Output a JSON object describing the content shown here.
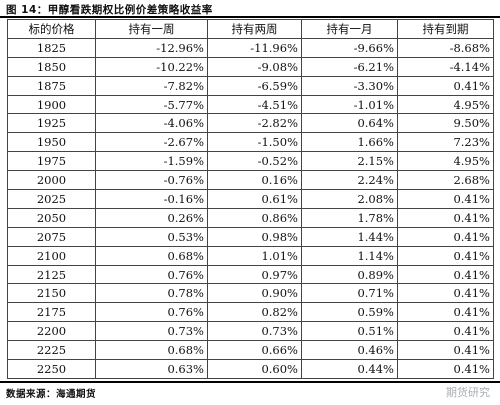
{
  "title": "图 14：甲醇看跌期权比例价差策略收益率",
  "source": "数据来源：海通期货",
  "watermark": "期货研究",
  "table": {
    "headers": [
      "标的价格",
      "持有一周",
      "持有两周",
      "持有一月",
      "持有到期"
    ],
    "rows": [
      [
        "1825",
        "-12.96%",
        "-11.96%",
        "-9.66%",
        "-8.68%"
      ],
      [
        "1850",
        "-10.22%",
        "-9.08%",
        "-6.21%",
        "-4.14%"
      ],
      [
        "1875",
        "-7.82%",
        "-6.59%",
        "-3.30%",
        "0.41%"
      ],
      [
        "1900",
        "-5.77%",
        "-4.51%",
        "-1.01%",
        "4.95%"
      ],
      [
        "1925",
        "-4.06%",
        "-2.82%",
        "0.64%",
        "9.50%"
      ],
      [
        "1950",
        "-2.67%",
        "-1.50%",
        "1.66%",
        "7.23%"
      ],
      [
        "1975",
        "-1.59%",
        "-0.52%",
        "2.15%",
        "4.95%"
      ],
      [
        "2000",
        "-0.76%",
        "0.16%",
        "2.24%",
        "2.68%"
      ],
      [
        "2025",
        "-0.16%",
        "0.61%",
        "2.08%",
        "0.41%"
      ],
      [
        "2050",
        "0.26%",
        "0.86%",
        "1.78%",
        "0.41%"
      ],
      [
        "2075",
        "0.53%",
        "0.98%",
        "1.44%",
        "0.41%"
      ],
      [
        "2100",
        "0.68%",
        "1.01%",
        "1.14%",
        "0.41%"
      ],
      [
        "2125",
        "0.76%",
        "0.97%",
        "0.89%",
        "0.41%"
      ],
      [
        "2150",
        "0.78%",
        "0.90%",
        "0.71%",
        "0.41%"
      ],
      [
        "2175",
        "0.76%",
        "0.82%",
        "0.59%",
        "0.41%"
      ],
      [
        "2200",
        "0.73%",
        "0.73%",
        "0.51%",
        "0.41%"
      ],
      [
        "2225",
        "0.68%",
        "0.66%",
        "0.46%",
        "0.41%"
      ],
      [
        "2250",
        "0.63%",
        "0.60%",
        "0.44%",
        "0.41%"
      ]
    ]
  }
}
